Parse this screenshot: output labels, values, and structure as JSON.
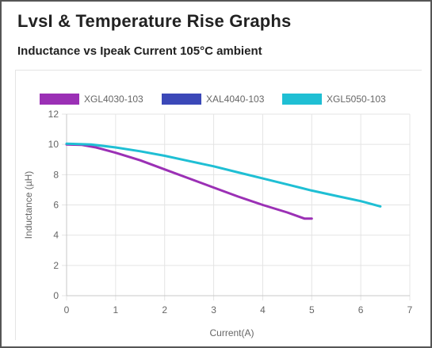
{
  "header": {
    "title": "LvsI & Temperature Rise Graphs",
    "subtitle": "Inductance vs Ipeak Current 105°C ambient"
  },
  "chart_data": {
    "type": "line",
    "title": "",
    "xlabel": "Current(A)",
    "ylabel": "Inductance (µH)",
    "xlim": [
      0,
      7
    ],
    "ylim": [
      0,
      12
    ],
    "x_ticks": [
      0,
      1,
      2,
      3,
      4,
      5,
      6,
      7
    ],
    "y_ticks": [
      0,
      2,
      4,
      6,
      8,
      10,
      12
    ],
    "grid": true,
    "legend_position": "top",
    "series": [
      {
        "name": "XGL4030-103",
        "color": "#9b30b5",
        "x": [
          0,
          0.3,
          0.6,
          1.0,
          1.5,
          2.0,
          2.5,
          3.0,
          3.5,
          4.0,
          4.5,
          4.85,
          5.0
        ],
        "y": [
          10.0,
          9.97,
          9.8,
          9.45,
          8.95,
          8.35,
          7.75,
          7.15,
          6.55,
          6.0,
          5.5,
          5.1,
          5.1
        ]
      },
      {
        "name": "XAL4040-103",
        "color": "#3b48b8",
        "x": [],
        "y": []
      },
      {
        "name": "XGL5050-103",
        "color": "#1fbfd4",
        "x": [
          0,
          0.5,
          1.0,
          1.5,
          2.0,
          2.5,
          3.0,
          3.5,
          4.0,
          4.5,
          5.0,
          5.5,
          6.0,
          6.4
        ],
        "y": [
          10.05,
          10.0,
          9.8,
          9.55,
          9.25,
          8.9,
          8.55,
          8.15,
          7.75,
          7.35,
          6.95,
          6.6,
          6.25,
          5.9
        ]
      }
    ]
  }
}
